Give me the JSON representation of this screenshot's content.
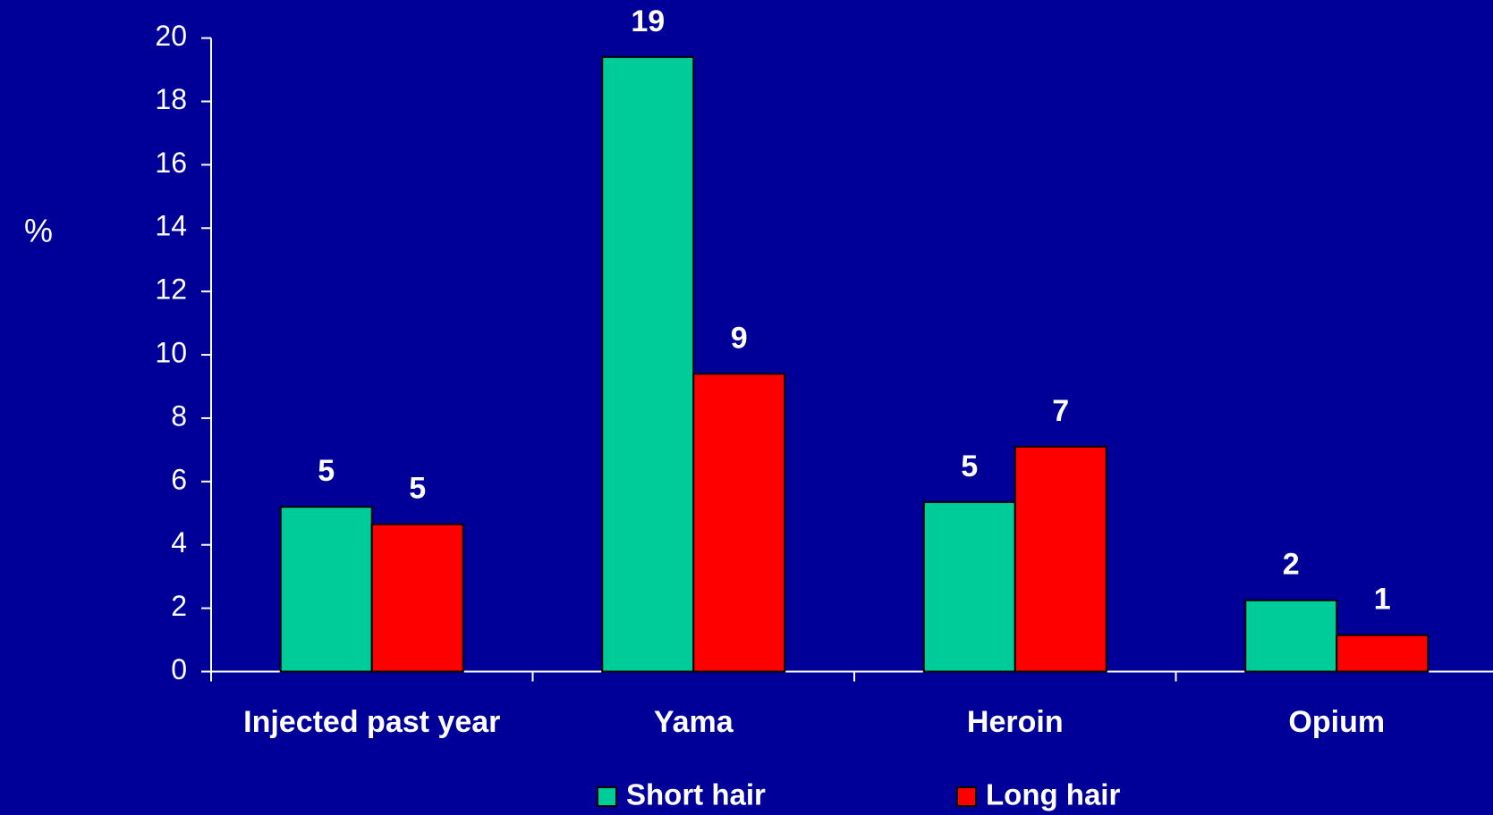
{
  "chart_data": {
    "type": "bar",
    "y_label": "%",
    "categories": [
      "Injected past year",
      "Yama",
      "Heroin",
      "Opium"
    ],
    "series": [
      {
        "name": "Short hair",
        "color": "#00cc99",
        "values": [
          5.2,
          19.4,
          5.35,
          2.25
        ],
        "value_labels": [
          "5",
          "19",
          "5",
          "2"
        ]
      },
      {
        "name": "Long hair",
        "color": "#ff0000",
        "values": [
          4.65,
          9.4,
          7.1,
          1.15
        ],
        "value_labels": [
          "5",
          "9",
          "7",
          "1"
        ]
      }
    ],
    "ylim": [
      0,
      20
    ],
    "yticks": [
      0,
      2,
      4,
      6,
      8,
      10,
      12,
      14,
      16,
      18,
      20
    ]
  }
}
